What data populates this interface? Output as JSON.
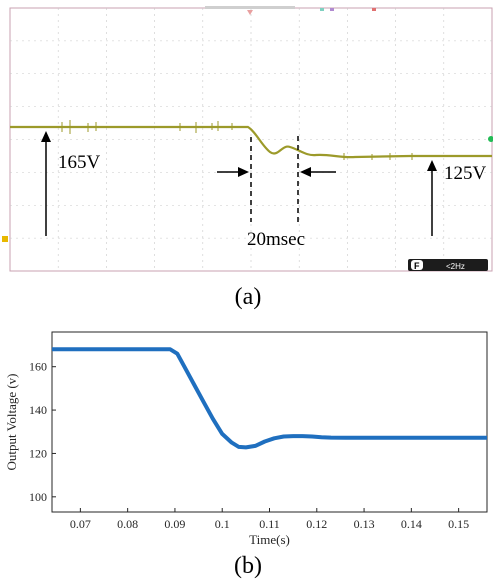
{
  "scope": {
    "label_left": "165V",
    "label_right": "125V",
    "label_duration": "20msec",
    "status_badge": "F",
    "status_text": "<2Hz",
    "trace_color": "#9c9a2a",
    "grid_color": "#c9c9c9",
    "border_color": "#c8a0b0"
  },
  "captions": {
    "a": "(a)",
    "b": "(b)"
  },
  "chart_data": {
    "type": "line",
    "title": "",
    "xlabel": "Time(s)",
    "ylabel": "Output Voltage (v)",
    "xlim": [
      0.064,
      0.156
    ],
    "ylim": [
      93,
      176
    ],
    "xticks": [
      0.07,
      0.08,
      0.09,
      0.1,
      0.11,
      0.12,
      0.13,
      0.14,
      0.15
    ],
    "xtick_labels": [
      "0.07",
      "0.08",
      "0.09",
      "0.1",
      "0.11",
      "0.12",
      "0.13",
      "0.14",
      "0.15"
    ],
    "yticks": [
      100,
      120,
      140,
      160
    ],
    "ytick_labels": [
      "100",
      "120",
      "140",
      "160"
    ],
    "grid": false,
    "line_color": "#1f6fbf",
    "series": [
      {
        "x": [
          0.064,
          0.07,
          0.08,
          0.089,
          0.0905,
          0.092,
          0.094,
          0.096,
          0.098,
          0.1,
          0.102,
          0.1035,
          0.105,
          0.107,
          0.109,
          0.111,
          0.113,
          0.115,
          0.117,
          0.119,
          0.121,
          0.123,
          0.126,
          0.13,
          0.14,
          0.15,
          0.156
        ],
        "y": [
          168,
          168,
          168,
          168,
          166,
          160,
          152,
          144,
          136,
          129,
          125,
          123,
          122.8,
          123.5,
          125.5,
          127,
          127.8,
          128,
          128,
          127.8,
          127.5,
          127.3,
          127.2,
          127.2,
          127.2,
          127.2,
          127.2
        ]
      }
    ]
  }
}
